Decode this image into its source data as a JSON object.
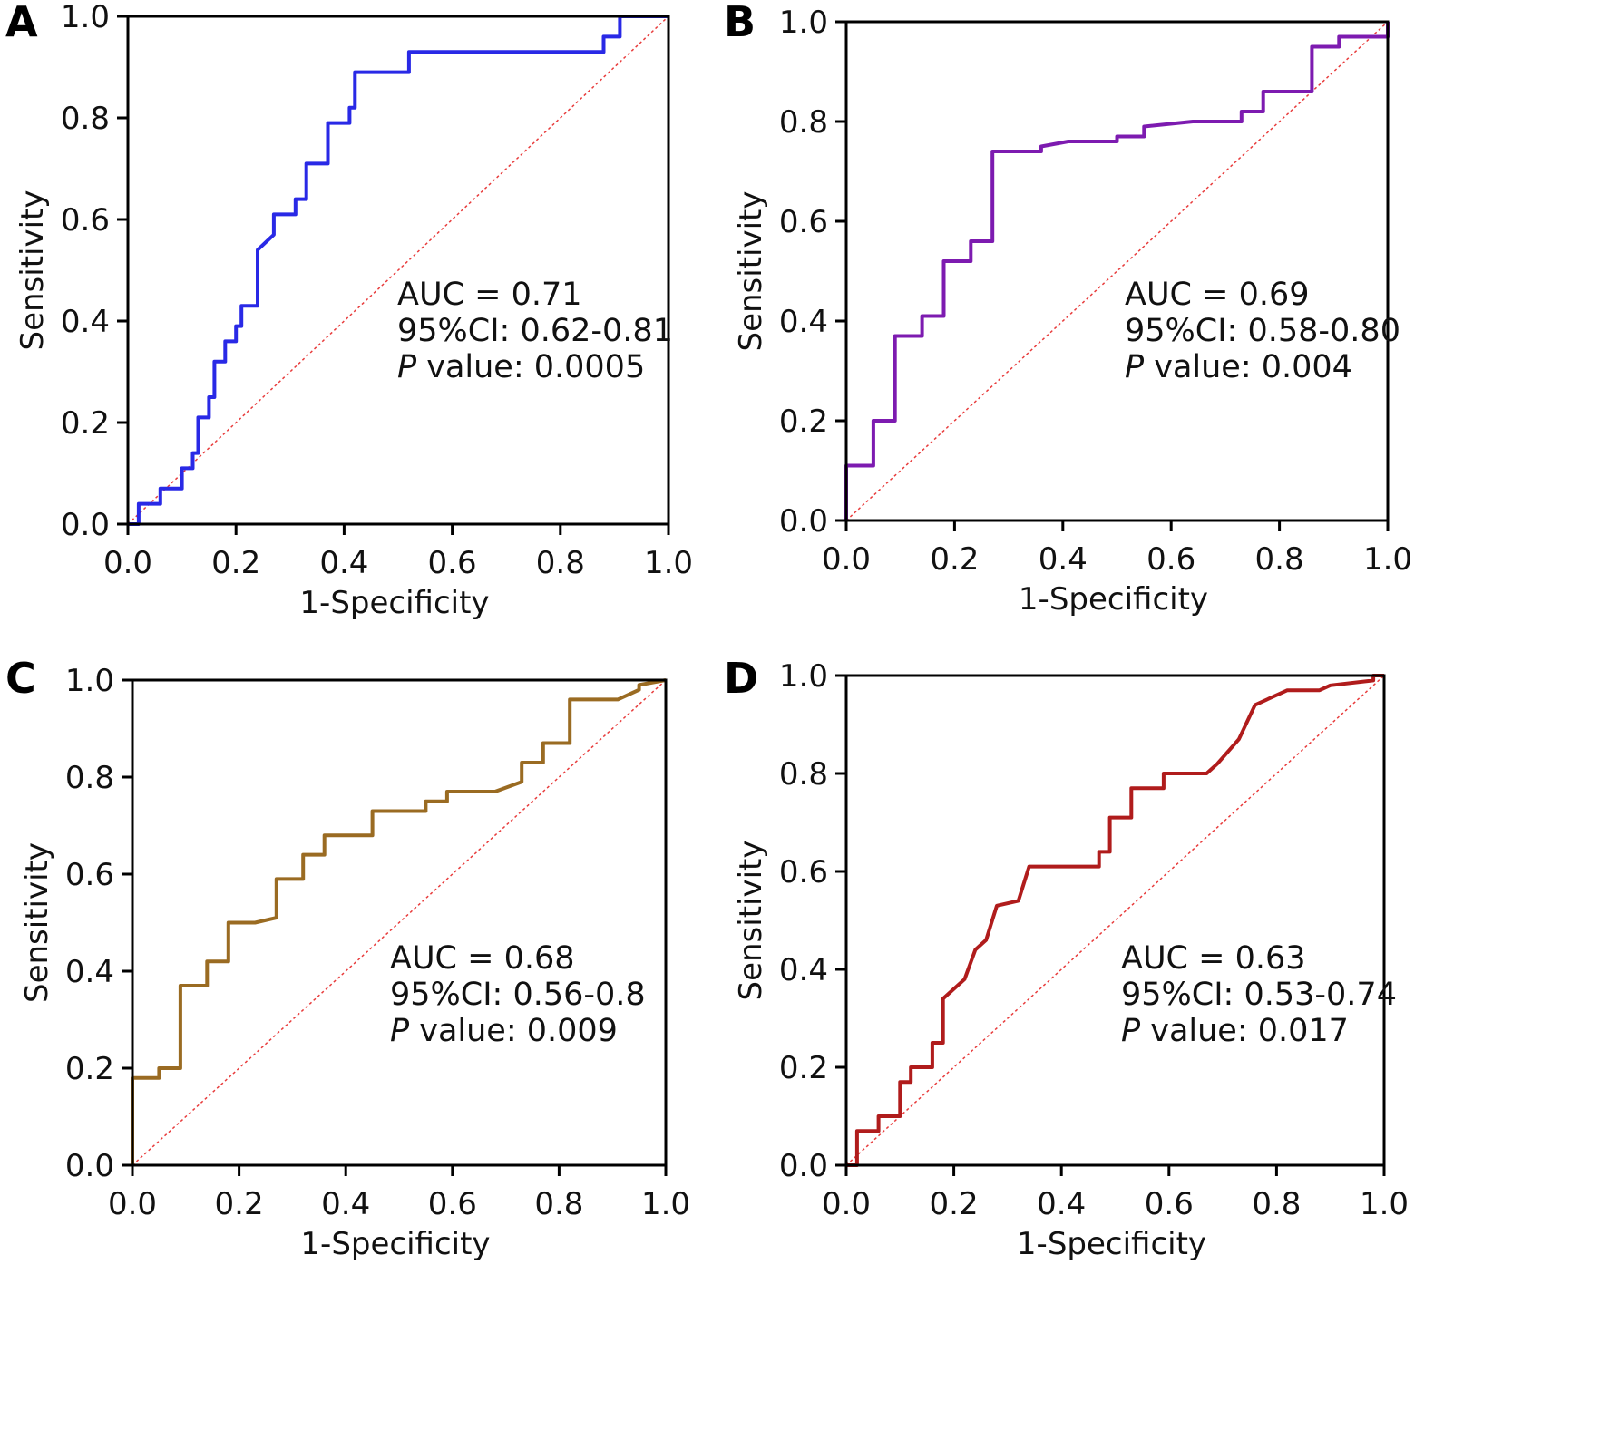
{
  "chart_data": [
    {
      "panel": "A",
      "type": "line",
      "xlabel": "1-Specificity",
      "ylabel": "Sensitivity",
      "xlim": [
        0,
        1
      ],
      "ylim": [
        0,
        1
      ],
      "xticks": [
        "0.0",
        "0.2",
        "0.4",
        "0.6",
        "0.8",
        "1.0"
      ],
      "yticks": [
        "0.0",
        "0.2",
        "0.4",
        "0.6",
        "0.8",
        "1.0"
      ],
      "color": "#2929e6",
      "reference_color": "#e83c3c",
      "annotations": {
        "auc": "AUC = 0.71",
        "ci": "95%CI: 0.62-0.81",
        "p_italic": "P",
        "p_rest": " value: 0.0005"
      },
      "x": [
        0,
        0.02,
        0.02,
        0.06,
        0.06,
        0.1,
        0.1,
        0.12,
        0.12,
        0.13,
        0.13,
        0.15,
        0.15,
        0.16,
        0.16,
        0.18,
        0.18,
        0.2,
        0.2,
        0.21,
        0.21,
        0.24,
        0.24,
        0.27,
        0.27,
        0.31,
        0.31,
        0.33,
        0.33,
        0.37,
        0.37,
        0.41,
        0.41,
        0.42,
        0.42,
        0.52,
        0.52,
        0.88,
        0.88,
        0.91,
        0.91,
        1.0
      ],
      "y": [
        0,
        0,
        0.04,
        0.04,
        0.07,
        0.07,
        0.11,
        0.11,
        0.14,
        0.14,
        0.21,
        0.21,
        0.25,
        0.25,
        0.32,
        0.32,
        0.36,
        0.36,
        0.39,
        0.39,
        0.43,
        0.43,
        0.54,
        0.57,
        0.61,
        0.61,
        0.64,
        0.64,
        0.71,
        0.71,
        0.79,
        0.79,
        0.82,
        0.82,
        0.89,
        0.89,
        0.93,
        0.93,
        0.96,
        0.96,
        1.0,
        1.0
      ]
    },
    {
      "panel": "B",
      "type": "line",
      "xlabel": "1-Specificity",
      "ylabel": "Sensitivity",
      "xlim": [
        0,
        1
      ],
      "ylim": [
        0,
        1
      ],
      "xticks": [
        "0.0",
        "0.2",
        "0.4",
        "0.6",
        "0.8",
        "1.0"
      ],
      "yticks": [
        "0.0",
        "0.2",
        "0.4",
        "0.6",
        "0.8",
        "1.0"
      ],
      "color": "#7d1bb0",
      "reference_color": "#e83c3c",
      "annotations": {
        "auc": "AUC = 0.69",
        "ci": "95%CI: 0.58-0.80",
        "p_italic": "P",
        "p_rest": " value: 0.004"
      },
      "x": [
        0,
        0,
        0.05,
        0.05,
        0.09,
        0.09,
        0.14,
        0.14,
        0.18,
        0.18,
        0.23,
        0.23,
        0.27,
        0.27,
        0.36,
        0.36,
        0.41,
        0.5,
        0.5,
        0.55,
        0.55,
        0.64,
        0.73,
        0.73,
        0.77,
        0.77,
        0.86,
        0.86,
        0.91,
        0.91,
        1.0,
        1.0
      ],
      "y": [
        0,
        0.11,
        0.11,
        0.2,
        0.2,
        0.37,
        0.37,
        0.41,
        0.41,
        0.52,
        0.52,
        0.56,
        0.56,
        0.74,
        0.74,
        0.75,
        0.76,
        0.76,
        0.77,
        0.77,
        0.79,
        0.8,
        0.8,
        0.82,
        0.82,
        0.86,
        0.86,
        0.95,
        0.95,
        0.97,
        0.97,
        1.0
      ]
    },
    {
      "panel": "C",
      "type": "line",
      "xlabel": "1-Specificity",
      "ylabel": "Sensitivity",
      "xlim": [
        0,
        1
      ],
      "ylim": [
        0,
        1
      ],
      "xticks": [
        "0.0",
        "0.2",
        "0.4",
        "0.6",
        "0.8",
        "1.0"
      ],
      "yticks": [
        "0.0",
        "0.2",
        "0.4",
        "0.6",
        "0.8",
        "1.0"
      ],
      "color": "#9a6b22",
      "reference_color": "#e83c3c",
      "annotations": {
        "auc": "AUC = 0.68",
        "ci": "95%CI: 0.56-0.8",
        "p_italic": "P",
        "p_rest": " value: 0.009"
      },
      "x": [
        0,
        0,
        0.05,
        0.05,
        0.09,
        0.09,
        0.14,
        0.14,
        0.18,
        0.18,
        0.23,
        0.27,
        0.27,
        0.32,
        0.32,
        0.36,
        0.36,
        0.45,
        0.45,
        0.55,
        0.55,
        0.59,
        0.59,
        0.68,
        0.73,
        0.73,
        0.77,
        0.77,
        0.82,
        0.82,
        0.91,
        0.95,
        0.95,
        1.0
      ],
      "y": [
        0,
        0.18,
        0.18,
        0.2,
        0.2,
        0.37,
        0.37,
        0.42,
        0.42,
        0.5,
        0.5,
        0.51,
        0.59,
        0.59,
        0.64,
        0.64,
        0.68,
        0.68,
        0.73,
        0.73,
        0.75,
        0.75,
        0.77,
        0.77,
        0.79,
        0.83,
        0.83,
        0.87,
        0.87,
        0.96,
        0.96,
        0.98,
        0.99,
        1.0
      ]
    },
    {
      "panel": "D",
      "type": "line",
      "xlabel": "1-Specificity",
      "ylabel": "Sensitivity",
      "xlim": [
        0,
        1
      ],
      "ylim": [
        0,
        1
      ],
      "xticks": [
        "0.0",
        "0.2",
        "0.4",
        "0.6",
        "0.8",
        "1.0"
      ],
      "yticks": [
        "0.0",
        "0.2",
        "0.4",
        "0.6",
        "0.8",
        "1.0"
      ],
      "color": "#b01c1c",
      "reference_color": "#e83c3c",
      "annotations": {
        "auc": "AUC = 0.63",
        "ci": "95%CI: 0.53-0.74",
        "p_italic": "P",
        "p_rest": " value: 0.017"
      },
      "x": [
        0,
        0.02,
        0.02,
        0.06,
        0.06,
        0.1,
        0.1,
        0.12,
        0.12,
        0.16,
        0.16,
        0.18,
        0.18,
        0.22,
        0.22,
        0.24,
        0.24,
        0.26,
        0.26,
        0.28,
        0.28,
        0.32,
        0.32,
        0.34,
        0.34,
        0.4,
        0.47,
        0.47,
        0.49,
        0.49,
        0.53,
        0.53,
        0.59,
        0.59,
        0.67,
        0.69,
        0.69,
        0.73,
        0.73,
        0.76,
        0.76,
        0.82,
        0.82,
        0.88,
        0.9,
        0.98,
        0.98,
        1.0
      ],
      "y": [
        0,
        0,
        0.07,
        0.07,
        0.1,
        0.1,
        0.17,
        0.17,
        0.2,
        0.2,
        0.25,
        0.25,
        0.34,
        0.38,
        0.38,
        0.44,
        0.44,
        0.46,
        0.46,
        0.53,
        0.53,
        0.54,
        0.54,
        0.61,
        0.61,
        0.61,
        0.61,
        0.64,
        0.64,
        0.71,
        0.71,
        0.77,
        0.77,
        0.8,
        0.8,
        0.82,
        0.82,
        0.87,
        0.87,
        0.94,
        0.94,
        0.97,
        0.97,
        0.97,
        0.98,
        0.99,
        1.0,
        1.0
      ]
    }
  ]
}
